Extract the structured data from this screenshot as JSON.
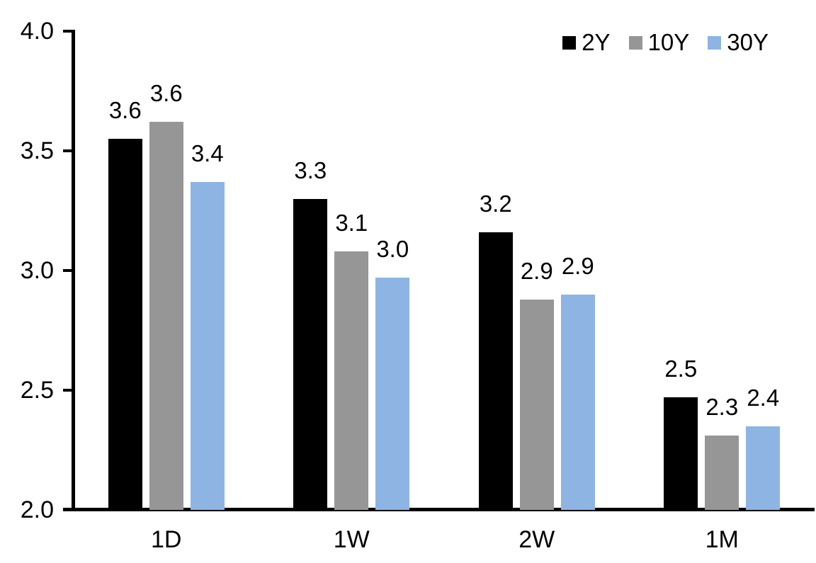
{
  "chart_data": {
    "type": "bar",
    "title": "",
    "xlabel": "",
    "ylabel": "",
    "categories": [
      "1D",
      "1W",
      "2W",
      "1M"
    ],
    "series": [
      {
        "name": "2Y",
        "color": "#000000",
        "values": [
          3.55,
          3.3,
          3.16,
          2.47
        ],
        "labels": [
          "3.6",
          "3.3",
          "3.2",
          "2.5"
        ]
      },
      {
        "name": "10Y",
        "color": "#969696",
        "values": [
          3.62,
          3.08,
          2.88,
          2.31
        ],
        "labels": [
          "3.6",
          "3.1",
          "2.9",
          "2.3"
        ]
      },
      {
        "name": "30Y",
        "color": "#8EB4E3",
        "values": [
          3.37,
          2.97,
          2.9,
          2.35
        ],
        "labels": [
          "3.4",
          "3.0",
          "2.9",
          "2.4"
        ]
      }
    ],
    "ylim": [
      2.0,
      4.0
    ],
    "yticks": [
      "4.0",
      "3.5",
      "3.0",
      "2.5",
      "2.0"
    ],
    "grid": false,
    "legend_position": "top-right",
    "axis_color": "#000000",
    "text_color": "#000000",
    "background_color": "#FFFFFF"
  }
}
